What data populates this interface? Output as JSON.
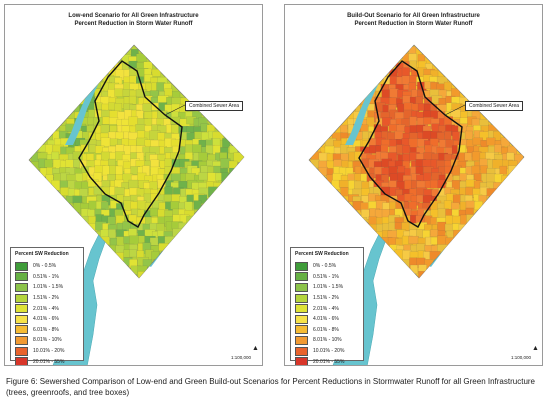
{
  "panels": [
    {
      "title": "Low-end Scenario for All Green Infrastructure\nPercent Reduction in Storm Water Runoff",
      "callout": "Combined Sewer Area",
      "legend_title": "Percent SW Reduction",
      "scale": "1:100,000",
      "north": "N",
      "dominant": [
        "#b8d23a",
        "#cde03c",
        "#a6cc3a",
        "#e0e334",
        "#93c548",
        "#d8dc2f",
        "#bcd644",
        "#6fb24a"
      ],
      "csa_colors": [
        "#e5df2f",
        "#d3da34",
        "#efe437",
        "#c6d53c",
        "#f3e23e"
      ]
    },
    {
      "title": "Build-Out Scenario for All Green Infrastructure\nPercent Reduction in Storm Water Runoff",
      "callout": "Combined Sewer Area",
      "legend_title": "Percent SW Reduction",
      "scale": "1:100,000",
      "north": "N",
      "dominant": [
        "#f5c02a",
        "#f29a2c",
        "#f0b12a",
        "#f7d433",
        "#ee8a2a",
        "#f5a83a",
        "#e9bf3b",
        "#f6ca45"
      ],
      "csa_colors": [
        "#e8582a",
        "#ef6d2b",
        "#dd4a25",
        "#f07a34",
        "#e4652c"
      ]
    }
  ],
  "legend": [
    {
      "label": "0% - 0.5%",
      "color": "#3f9c3a"
    },
    {
      "label": "0.51% - 1%",
      "color": "#66b044"
    },
    {
      "label": "1.01% - 1.5%",
      "color": "#8cc34a"
    },
    {
      "label": "1.51% - 2%",
      "color": "#b5d53d"
    },
    {
      "label": "2.01% - 4%",
      "color": "#dee337"
    },
    {
      "label": "4.01% - 6%",
      "color": "#f6e24a"
    },
    {
      "label": "6.01% - 8%",
      "color": "#f5bb34"
    },
    {
      "label": "8.01% - 10%",
      "color": "#f19a33"
    },
    {
      "label": "10.01% - 20%",
      "color": "#e9632d"
    },
    {
      "label": "20.01% - 55%",
      "color": "#d8362a"
    }
  ],
  "colors": {
    "water": "#67c4cf",
    "boundary": "#111111",
    "frame": "#9a9a9a"
  },
  "caption": "Figure 6:  Sewershed Comparison of Low-end and Green Build-out Scenarios for Percent Reductions in Stormwater Runoff for all Green Infrastructure (trees, greenroofs, and tree boxes)"
}
